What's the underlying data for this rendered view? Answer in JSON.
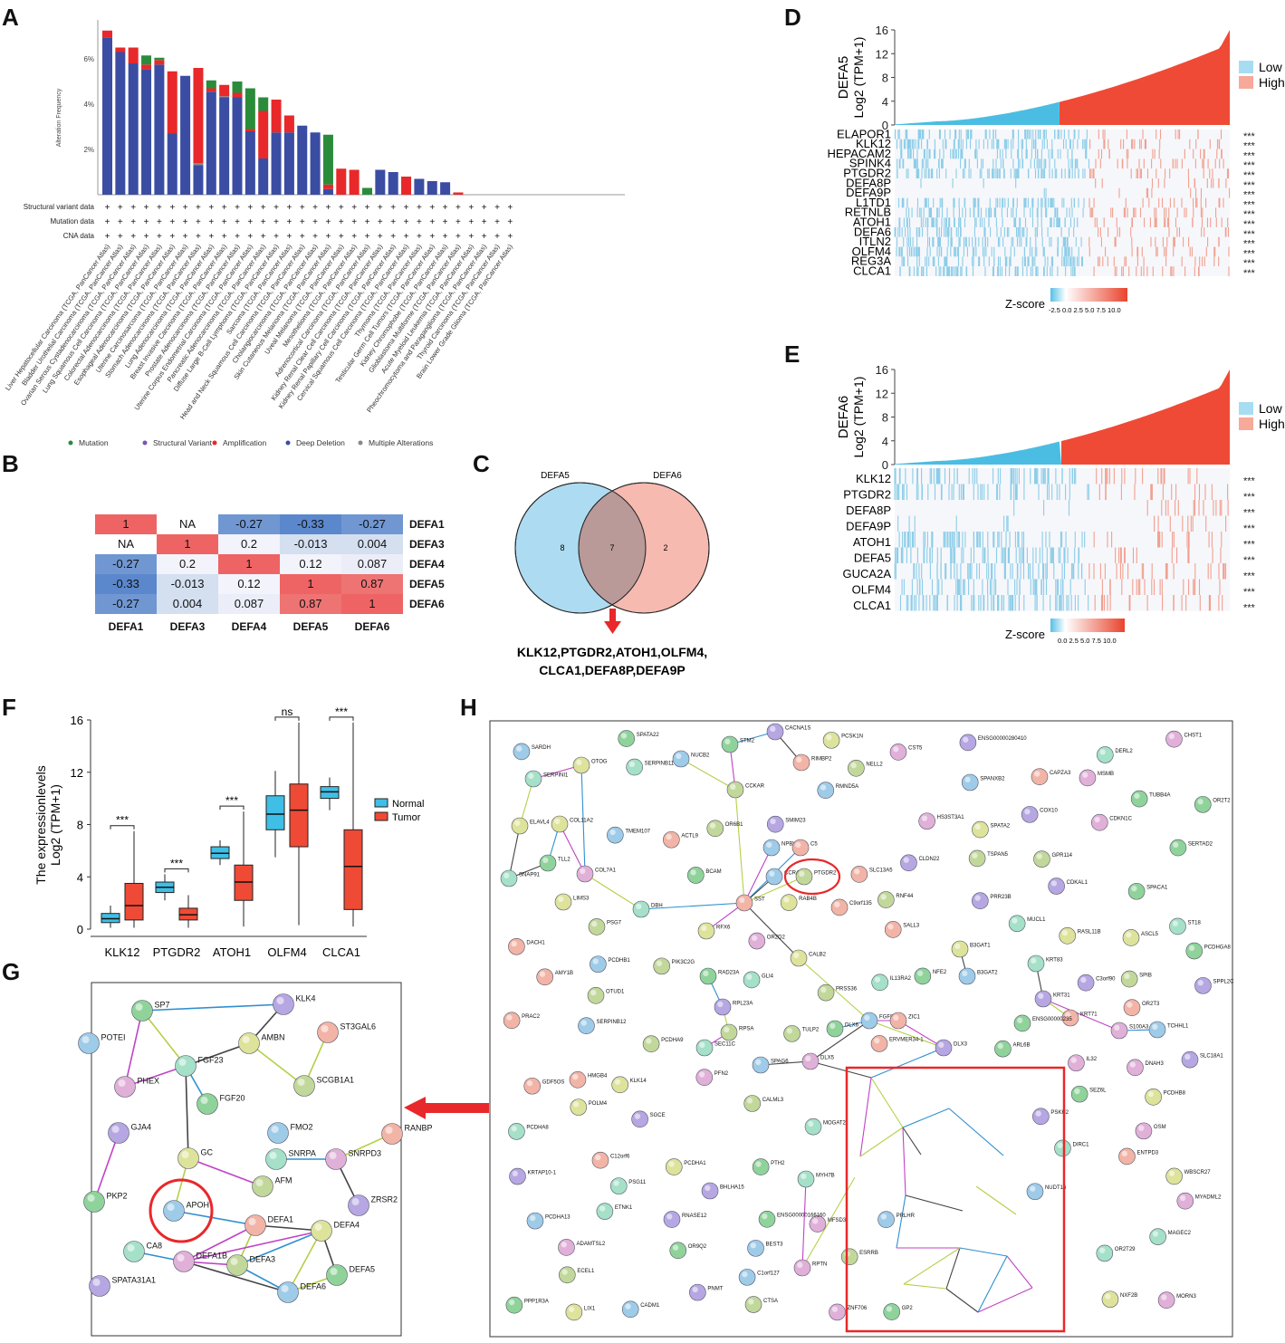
{
  "panel_letters": {
    "a": "A",
    "b": "B",
    "c": "C",
    "d": "D",
    "e": "E",
    "f": "F",
    "g": "G",
    "h": "H"
  },
  "colors": {
    "deep_deletion": "#3a4da3",
    "amplification": "#e8282a",
    "mutation": "#2a8c3a",
    "structural": "#7a55b0",
    "multiple": "#888888",
    "low": "#4bbde3",
    "high": "#ef4a35",
    "normal": "#3fbfe6",
    "tumor": "#ef4a35"
  },
  "panel_a": {
    "ylabel": "Alteration Frequency",
    "row_labels": [
      "Structural variant data",
      "Mutation data",
      "CNA data"
    ],
    "legend": [
      "Mutation",
      "Structural Variant",
      "Amplification",
      "Deep Deletion",
      "Multiple Alterations"
    ],
    "chart_data": {
      "type": "bar",
      "title": "",
      "ylabel": "Alteration Frequency",
      "ylim": [
        0,
        7.4
      ],
      "yticks": [
        "2%",
        "4%",
        "6%"
      ],
      "categories": [
        "Liver Hepatocellular Carcinoma (TCGA, PanCancer Atlas)",
        "Bladder Urothelial Carcinoma (TCGA, PanCancer Atlas)",
        "Ovarian Serous Cystadenocarcinoma (TCGA, PanCancer Atlas)",
        "Lung Squamous Cell Carcinoma (TCGA, PanCancer Atlas)",
        "Colorectal Adenocarcinoma (TCGA, PanCancer Atlas)",
        "Esophageal Adenocarcinoma (TCGA, PanCancer Atlas)",
        "Uterine Carcinosarcoma (TCGA, PanCancer Atlas)",
        "Stomach Adenocarcinoma (TCGA, PanCancer Atlas)",
        "Lung Adenocarcinoma (TCGA, PanCancer Atlas)",
        "Breast Invasive Carcinoma (TCGA, PanCancer Atlas)",
        "Prostate Adenocarcinoma (TCGA, PanCancer Atlas)",
        "Uterine Corpus Endometrial Carcinoma (TCGA, PanCancer Atlas)",
        "Pancreatic Adenocarcinoma (TCGA, PanCancer Atlas)",
        "Diffuse Large B-Cell Lymphoma (TCGA, PanCancer Atlas)",
        "Sarcoma (TCGA, PanCancer Atlas)",
        "Head and Neck Squamous Cell Carcinoma (TCGA, PanCancer Atlas)",
        "Cholangiocarcinoma (TCGA, PanCancer Atlas)",
        "Skin Cutaneous Melanoma (TCGA, PanCancer Atlas)",
        "Uveal Melanoma (TCGA, PanCancer Atlas)",
        "Mesothelioma (TCGA, PanCancer Atlas)",
        "Adrenocortical Carcinoma (TCGA, PanCancer Atlas)",
        "Kidney Renal Clear Cell Carcinoma (TCGA, PanCancer Atlas)",
        "Kidney Renal Papillary Cell Carcinoma (TCGA, PanCancer Atlas)",
        "Cervical Squamous Cell Carcinoma (TCGA, PanCancer Atlas)",
        "Thymoma (TCGA, PanCancer Atlas)",
        "Testicular Germ Cell Tumors (TCGA, PanCancer Atlas)",
        "Kidney Chromophobe (TCGA, PanCancer Atlas)",
        "Glioblastoma Multiforme (TCGA, PanCancer Atlas)",
        "Acute Myeloid Leukemia (TCGA, PanCancer Atlas)",
        "Pheochromocytoma and Paraganglioma (TCGA, PanCancer Atlas)",
        "Thyroid Carcinoma (TCGA, PanCancer Atlas)",
        "Brain Lower Grade Glioma (TCGA, PanCancer Atlas)"
      ],
      "series": [
        {
          "name": "Deep Deletion",
          "values": [
            6.95,
            6.3,
            5.8,
            5.55,
            5.75,
            2.7,
            5.25,
            1.3,
            4.55,
            4.3,
            4.3,
            2.8,
            1.6,
            2.75,
            2.75,
            3.05,
            2.75,
            0.25,
            0,
            0,
            0,
            1.1,
            1,
            0,
            0.7,
            0.6,
            0.55,
            0,
            0,
            0,
            0,
            0
          ]
        },
        {
          "name": "Amplification",
          "values": [
            0.3,
            0.2,
            0.7,
            0.2,
            0.2,
            2.75,
            0,
            4.2,
            0.15,
            0.5,
            0.2,
            0.1,
            2.1,
            1.45,
            0.75,
            0,
            0,
            0.2,
            1.15,
            1.1,
            0,
            0,
            0,
            0.8,
            0,
            0,
            0,
            0.1,
            0,
            0,
            0,
            0
          ]
        },
        {
          "name": "Mutation",
          "values": [
            0,
            0,
            0,
            0.4,
            0.1,
            0,
            0,
            0,
            0.35,
            0,
            0.5,
            1.8,
            0.6,
            0,
            0,
            0,
            0,
            2.2,
            0,
            0,
            0.3,
            0,
            0,
            0,
            0,
            0,
            0,
            0,
            0,
            0,
            0,
            0
          ]
        },
        {
          "name": "Multiple Alterations",
          "values": [
            0,
            0,
            0,
            0,
            0,
            0,
            0,
            0.1,
            0,
            0.05,
            0,
            0,
            0,
            0,
            0,
            0,
            0,
            0,
            0,
            0,
            0,
            0,
            0,
            0,
            0,
            0,
            0,
            0,
            0,
            0,
            0,
            0
          ]
        }
      ]
    }
  },
  "panel_b": {
    "chart_data": {
      "type": "heatmap",
      "rows": [
        "DEFA1",
        "DEFA3",
        "DEFA4",
        "DEFA5",
        "DEFA6"
      ],
      "cols": [
        "DEFA1",
        "DEFA3",
        "DEFA4",
        "DEFA5",
        "DEFA6"
      ],
      "values": [
        [
          "1",
          "NA",
          "-0.27",
          "-0.33",
          "-0.27"
        ],
        [
          "NA",
          "1",
          "0.2",
          "-0.013",
          "0.004"
        ],
        [
          "-0.27",
          "0.2",
          "1",
          "0.12",
          "0.087"
        ],
        [
          "-0.33",
          "-0.013",
          "0.12",
          "1",
          "0.87"
        ],
        [
          "-0.27",
          "0.004",
          "0.087",
          "0.87",
          "1"
        ]
      ]
    }
  },
  "panel_c": {
    "left_label": "DEFA5",
    "right_label": "DEFA6",
    "left_only": "8",
    "overlap": "7",
    "right_only": "2",
    "genes_line1": "KLK12,PTGDR2,ATOH1,OLFM4,",
    "genes_line2": "CLCA1,DEFA8P,DEFA9P"
  },
  "panel_d": {
    "gene": "DEFA5",
    "ylabel": "Log2 (TPM+1)",
    "yticks": [
      "16",
      "12",
      "8",
      "4",
      "0"
    ],
    "legend": [
      "Low",
      "High"
    ],
    "genes": [
      "ELAPOR1",
      "KLK12",
      "HEPACAM2",
      "SPINK4",
      "PTGDR2",
      "DEFA8P",
      "DEFA9P",
      "L1TD1",
      "RETNLB",
      "ATOH1",
      "DEFA6",
      "ITLN2",
      "OLFM4",
      "REG3A",
      "CLCA1"
    ],
    "sig": "***",
    "zscore_label": "Z-score",
    "zscore_ticks": "-2.5 0.0 2.5 5.0 7.5 10.0"
  },
  "panel_e": {
    "gene": "DEFA6",
    "ylabel": "Log2 (TPM+1)",
    "yticks": [
      "16",
      "12",
      "8",
      "4",
      "0"
    ],
    "legend": [
      "Low",
      "High"
    ],
    "genes": [
      "KLK12",
      "PTGDR2",
      "DEFA8P",
      "DEFA9P",
      "ATOH1",
      "DEFA5",
      "GUCA2A",
      "OLFM4",
      "CLCA1"
    ],
    "sig": "***",
    "zscore_label": "Z-score",
    "zscore_ticks": "0.0 2.5 5.0 7.5 10.0"
  },
  "panel_f": {
    "ylabel1": "The expressionlevels",
    "ylabel2": "Log2 (TPM+1)",
    "legend": [
      "Normal",
      "Tumor"
    ],
    "chart_data": {
      "type": "box",
      "categories": [
        "KLK12",
        "PTGDR2",
        "ATOH1",
        "OLFM4",
        "CLCA1"
      ],
      "ylim": [
        0,
        16
      ],
      "yticks": [
        "0",
        "4",
        "8",
        "12",
        "16"
      ],
      "significance": [
        "***",
        "***",
        "***",
        "ns",
        "***"
      ],
      "series": [
        {
          "name": "Normal",
          "boxes": [
            [
              0.1,
              0.5,
              0.8,
              1.2,
              1.8
            ],
            [
              2.2,
              2.8,
              3.2,
              3.6,
              4.2
            ],
            [
              4.9,
              5.4,
              5.8,
              6.3,
              6.8
            ],
            [
              5.5,
              7.6,
              8.8,
              10.2,
              12.1
            ],
            [
              9.1,
              10.0,
              10.5,
              10.9,
              11.6
            ]
          ]
        },
        {
          "name": "Tumor",
          "boxes": [
            [
              0.1,
              0.7,
              1.8,
              3.5,
              7.5
            ],
            [
              0.1,
              0.7,
              1.1,
              1.6,
              2.6
            ],
            [
              0.2,
              2.2,
              3.6,
              4.9,
              9.0
            ],
            [
              0.3,
              6.3,
              9.1,
              11.1,
              15.8
            ],
            [
              0.2,
              1.5,
              4.8,
              7.6,
              15.8
            ]
          ]
        }
      ]
    }
  },
  "network_nodes_g": [
    "SP7",
    "KLK4",
    "POTEI",
    "ST3GAL6",
    "AMBN",
    "FGF23",
    "PHEX",
    "SCGB1A1",
    "FGF20",
    "GJA4",
    "FMO2",
    "RANBP",
    "GC",
    "SNRPA",
    "SNRPD3",
    "AFM",
    "PKP2",
    "ZRSR2",
    "APOH",
    "DEFA1",
    "DEFA4",
    "CA8",
    "DEFA1B",
    "DEFA3",
    "DEFA5",
    "SPATA31A1",
    "DEFA6"
  ],
  "network_nodes_h": [
    "STM2",
    "CACNA1S",
    "NUCB2",
    "RIMBP2",
    "OTOG",
    "SERPINI1",
    "ADAMTSL2",
    "CCKAR",
    "NFE2",
    "BHLHA15",
    "SPANXB2",
    "SLC13A5",
    "SPATA2",
    "SERPINB11",
    "MORN3",
    "OTUD1",
    "SERTAD2",
    "PRR23B",
    "CADM1",
    "SALL3",
    "ELAVL4",
    "PSG11",
    "OR2D2",
    "ECEL1",
    "OR9Q2",
    "PSKH2",
    "RMND5A",
    "AMY1B",
    "COL11A2",
    "ST18",
    "MFSD3",
    "PRSS36",
    "BCAM",
    "COX10",
    "NPBWR2",
    "C5",
    "NXF2B",
    "MAGEC2",
    "CST5",
    "PIK3C2G",
    "TLL2",
    "PNMT",
    "CCR4",
    "DACH1",
    "LIX1",
    "SNAP91",
    "COL7A1",
    "PTGDR2",
    "SPACA1",
    "RNASE12",
    "PRLHR",
    "SST",
    "LIMS3",
    "DBH",
    "CDKN1C",
    "NELL2",
    "SPATA22",
    "KRTAP10-1",
    "C1orf127",
    "GDF5OS",
    "RFX6",
    "IL13RA2",
    "OSM",
    "SPIB",
    "GP2",
    "SLC18A1",
    "NUDT16",
    "ENTPD3",
    "B3GAT1",
    "KRT83",
    "ZNF706",
    "PCDHA9",
    "RAD23A",
    "SGCE",
    "B3GAT2",
    "KRT71",
    "PCDHA1",
    "GLI4",
    "DNAH3",
    "TULP2",
    "TUBB4A",
    "KRT31",
    "TCHHL1",
    "C12orf6",
    "CALB2",
    "DERL2",
    "S100A3",
    "RNF44",
    "ENSG00000235",
    "RPL23A",
    "FGF8",
    "ZIC1",
    "PCDHB8",
    "DIRC1",
    "PFN2",
    "RPSA",
    "DLX6",
    "DLX3",
    "PCDHB1",
    "ERVMER34-1",
    "ASCL5",
    "SEC11C",
    "DLX5",
    "CTSA",
    "SEZ6L",
    "CLDN22",
    "SPAG6",
    "PRAC2",
    "PCSK1N",
    "MOGAT2",
    "HS3ST3A1",
    "PSG7",
    "PTH2",
    "CDKAL1",
    "SERPINB12",
    "CAPZA3",
    "RAB4B",
    "MUCL1",
    "MYADML2",
    "CALML3",
    "PPP1R3A",
    "ENSG00000280410",
    "SARDH",
    "ACTL9",
    "RASL11B",
    "MYH7B",
    "CHST1",
    "GPR114",
    "OR2T2",
    "SMIM23",
    "TMEM107",
    "HMGB4",
    "POLM4",
    "ETNK1",
    "MSMB",
    "OR6B1",
    "ARL6B",
    "C3orf90",
    "PCDHA13",
    "C9orf135",
    "WBSCR27",
    "OR2T29",
    "RPTN",
    "TSPAN5",
    "PCDHGA8",
    "SPPL2C",
    "BEST3",
    "OR2T3",
    "KLK14",
    "PCDHA8",
    "IL32",
    "ESRRB",
    "ENSG00000166160"
  ]
}
